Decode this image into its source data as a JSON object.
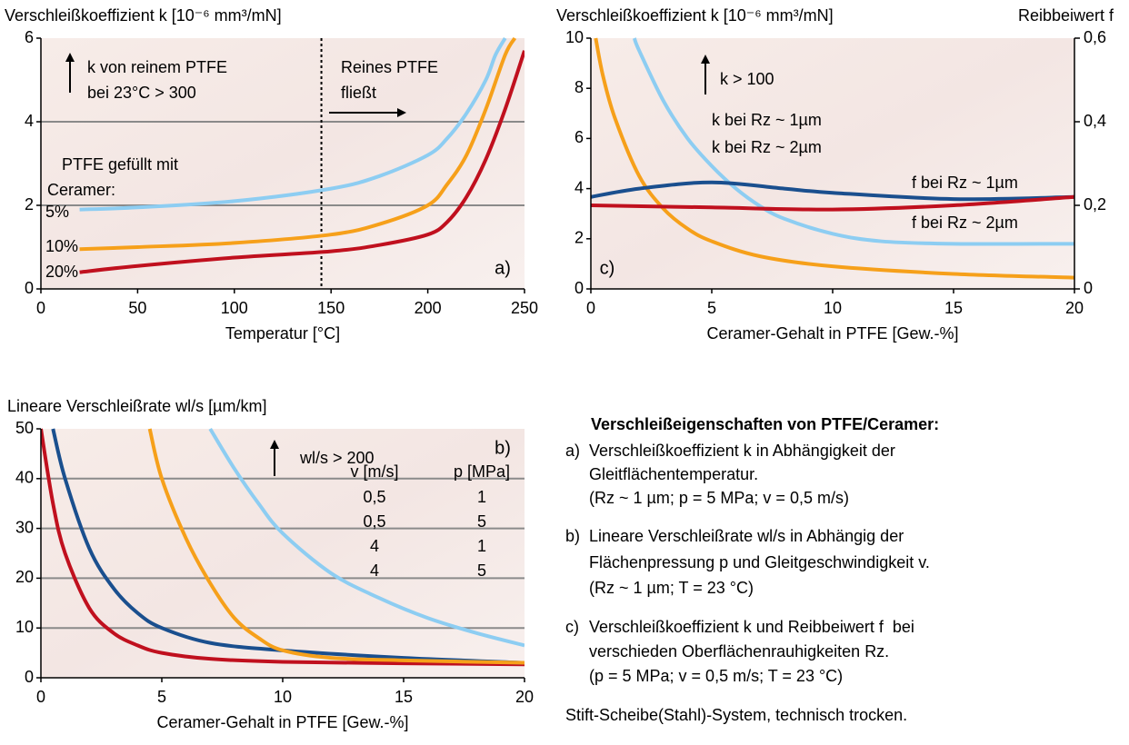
{
  "chart_data": [
    {
      "type": "line",
      "label": "a)",
      "title": "Verschleißkoeffizient k [10⁻⁶ mm³/mN]",
      "xlabel": "Temperatur [°C]",
      "xlim": [
        0,
        250
      ],
      "xticks": [
        0,
        50,
        100,
        150,
        200,
        250
      ],
      "ylim": [
        0,
        6
      ],
      "yticks": [
        0,
        2,
        4,
        6
      ],
      "grid": true,
      "vline": 145,
      "annotations": [
        "k von reinem PTFE",
        "bei 23°C > 300",
        "Reines PTFE",
        "fließt",
        "PTFE gefüllt mit",
        "Ceramer:"
      ],
      "series": [
        {
          "name": "5%",
          "color": "#8dcdf2",
          "x": [
            20,
            50,
            100,
            150,
            175,
            200,
            210,
            220,
            230,
            235,
            240
          ],
          "values": [
            1.9,
            1.95,
            2.1,
            2.4,
            2.7,
            3.2,
            3.6,
            4.2,
            5.0,
            5.6,
            6.0
          ]
        },
        {
          "name": "10%",
          "color": "#f6a01a",
          "x": [
            20,
            50,
            100,
            150,
            175,
            200,
            210,
            220,
            230,
            240,
            245
          ],
          "values": [
            0.95,
            1.0,
            1.1,
            1.3,
            1.55,
            2.0,
            2.5,
            3.2,
            4.3,
            5.6,
            6.0
          ]
        },
        {
          "name": "20%",
          "color": "#c0101e",
          "x": [
            20,
            50,
            100,
            150,
            175,
            200,
            210,
            220,
            230,
            240,
            250
          ],
          "values": [
            0.4,
            0.55,
            0.75,
            0.9,
            1.05,
            1.3,
            1.6,
            2.2,
            3.1,
            4.3,
            5.7
          ]
        }
      ]
    },
    {
      "type": "line",
      "label": "c)",
      "title": "Verschleißkoeffizient k [10⁻⁶ mm³/mN]",
      "y2title": "Reibbeiwert f",
      "xlabel": "Ceramer-Gehalt in PTFE [Gew.-%]",
      "xlim": [
        0,
        20
      ],
      "xticks": [
        0,
        5,
        10,
        15,
        20
      ],
      "ylim": [
        0,
        10
      ],
      "yticks": [
        0,
        2,
        4,
        6,
        8,
        10
      ],
      "y2lim": [
        0,
        0.6
      ],
      "y2ticks": [
        0,
        {
          "value": 0.2,
          "label": "0,2"
        },
        {
          "value": 0.4,
          "label": "0,4"
        },
        {
          "value": 0.6,
          "label": "0,6"
        }
      ],
      "grid": false,
      "annotations": [
        "k > 100"
      ],
      "series": [
        {
          "name": "k bei Rz ~ 1µm",
          "color": "#f6a01a",
          "x": [
            0.2,
            0.5,
            1,
            2,
            3,
            4,
            5,
            7,
            10,
            15,
            20
          ],
          "values": [
            10,
            8.5,
            6.8,
            4.5,
            3.2,
            2.4,
            1.9,
            1.3,
            0.9,
            0.6,
            0.45
          ]
        },
        {
          "name": "k bei Rz ~ 2µm",
          "color": "#8dcdf2",
          "x": [
            1.8,
            2,
            3,
            4,
            5,
            6,
            7,
            8,
            10,
            12,
            15,
            20
          ],
          "values": [
            10,
            9.5,
            7.5,
            6,
            4.9,
            4,
            3.3,
            2.8,
            2.2,
            1.9,
            1.8,
            1.8
          ]
        },
        {
          "name": "f bei Rz ~ 1µm",
          "color": "#1a4f8e",
          "axis": "y2",
          "x": [
            0,
            2,
            5,
            8,
            10,
            15,
            20
          ],
          "values": [
            0.22,
            0.24,
            0.255,
            0.24,
            0.23,
            0.215,
            0.22
          ]
        },
        {
          "name": "f bei Rz ~ 2µm",
          "color": "#c0101e",
          "axis": "y2",
          "x": [
            0,
            5,
            10,
            15,
            20
          ],
          "values": [
            0.2,
            0.195,
            0.19,
            0.2,
            0.22
          ]
        }
      ]
    },
    {
      "type": "line",
      "label": "b)",
      "title": "Lineare Verschleißrate wl/s [µm/km]",
      "xlabel": "Ceramer-Gehalt in PTFE [Gew.-%]",
      "xlim": [
        0,
        20
      ],
      "xticks": [
        0,
        5,
        10,
        15,
        20
      ],
      "ylim": [
        0,
        50
      ],
      "yticks": [
        0,
        10,
        20,
        30,
        40,
        50
      ],
      "grid": true,
      "annotations": [
        "wl/s > 200"
      ],
      "legend_header": [
        "v [m/s]",
        "p [MPa]"
      ],
      "series": [
        {
          "legend": [
            "0,5",
            "1"
          ],
          "color": "#c0101e",
          "x": [
            0,
            0.5,
            1,
            2,
            3,
            4,
            5,
            7,
            10,
            15,
            20
          ],
          "values": [
            50,
            35,
            25,
            14,
            9,
            6.5,
            5,
            3.8,
            3.2,
            2.9,
            2.7
          ]
        },
        {
          "legend": [
            "0,5",
            "5"
          ],
          "color": "#1a4f8e",
          "x": [
            0.5,
            1,
            2,
            3,
            4,
            5,
            7,
            10,
            15,
            20
          ],
          "values": [
            50,
            40,
            26,
            18,
            13,
            10,
            7,
            5.5,
            4,
            3
          ]
        },
        {
          "legend": [
            "4",
            "1"
          ],
          "color": "#f6a01a",
          "x": [
            4.5,
            5,
            6,
            7,
            8,
            9,
            10,
            12,
            15,
            20
          ],
          "values": [
            50,
            40,
            28,
            19,
            12,
            8,
            5.5,
            4,
            3.5,
            3
          ]
        },
        {
          "legend": [
            "4",
            "5"
          ],
          "color": "#8dcdf2",
          "x": [
            7,
            8,
            9,
            10,
            12,
            14,
            16,
            18,
            20
          ],
          "values": [
            50,
            42,
            35,
            29,
            21,
            16,
            12,
            9,
            6.5
          ]
        }
      ]
    }
  ],
  "notes": {
    "title": "Verschleißeigenschaften von PTFE/Ceramer:",
    "items": [
      {
        "label": "a)",
        "lines": [
          "Verschleißkoeffizient k in Abhängigkeit der",
          "Gleitflächentemperatur.",
          "(Rz ~ 1 µm; p = 5 MPa; v = 0,5 m/s)"
        ]
      },
      {
        "label": "b)",
        "lines": [
          "Lineare Verschleißrate wl/s in Abhängig der",
          "Flächenpressung p und Gleitgeschwindigkeit v.",
          "(Rz ~ 1 µm; T = 23 °C)"
        ]
      },
      {
        "label": "c)",
        "lines": [
          "Verschleißkoeffizient k und Reibbeiwert f  bei",
          "verschieden Oberflächenrauhigkeiten Rz.",
          "(p = 5 MPa; v = 0,5 m/s; T = 23 °C)"
        ]
      }
    ],
    "footer": "Stift-Scheibe(Stahl)-System, technisch trocken."
  }
}
